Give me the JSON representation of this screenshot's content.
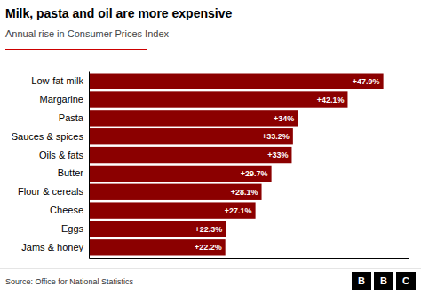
{
  "chart_data": {
    "type": "bar",
    "orientation": "horizontal",
    "title": "Milk, pasta and oil are more expensive",
    "subtitle": "Annual rise in Consumer Prices Index",
    "categories": [
      "Jams & honey",
      "Eggs",
      "Cheese",
      "Flour & cereals",
      "Butter",
      "Oils & fats",
      "Sauces & spices",
      "Pasta",
      "Margarine",
      "Low-fat milk"
    ],
    "values": [
      22.2,
      22.3,
      27.1,
      28.1,
      29.7,
      33.0,
      33.2,
      34.0,
      42.1,
      47.9
    ],
    "value_labels": [
      "+22.2%",
      "+22.3%",
      "+27.1%",
      "+28.1%",
      "+29.7%",
      "+33%",
      "+33.2%",
      "+34%",
      "+42.1%",
      "+47.9%"
    ],
    "data_labels": true,
    "color": "#8B0000",
    "xlim": [
      0,
      52
    ],
    "tick_labels": "y",
    "grid": false,
    "annotations": [
      "Source: Office for National Statistics",
      "BBC"
    ]
  }
}
